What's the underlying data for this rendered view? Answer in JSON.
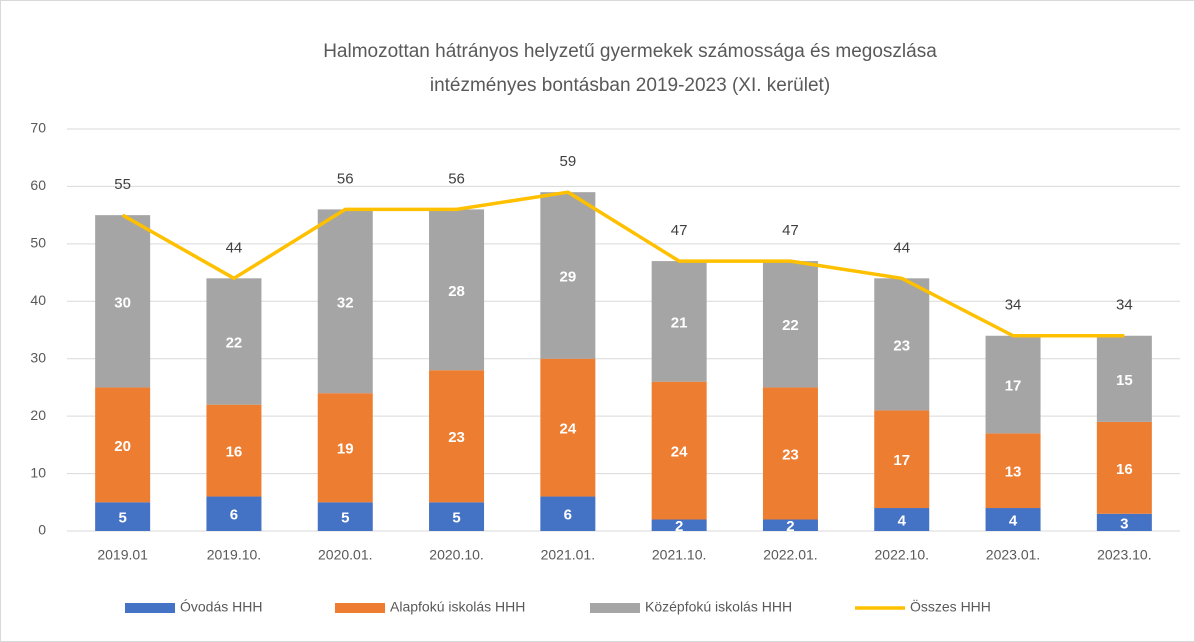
{
  "chart_data": {
    "type": "bar",
    "stacked": true,
    "title": [
      "Halmozottan hátrányos helyzetű gyermekek számossága és megoszlása",
      "intézményes bontásban 2019-2023 (XI. kerület)"
    ],
    "categories": [
      "2019.01",
      "2019.10.",
      "2020.01.",
      "2020.10.",
      "2021.01.",
      "2021.10.",
      "2022.01.",
      "2022.10.",
      "2023.01.",
      "2023.10."
    ],
    "series": [
      {
        "name": "Óvodás HHH",
        "color": "#4472c4",
        "values": [
          5,
          6,
          5,
          5,
          6,
          2,
          2,
          4,
          4,
          3
        ]
      },
      {
        "name": "Alapfokú iskolás HHH",
        "color": "#ed7d31",
        "values": [
          20,
          16,
          19,
          23,
          24,
          24,
          23,
          17,
          13,
          16
        ]
      },
      {
        "name": "Középfokú iskolás HHH",
        "color": "#a5a5a5",
        "values": [
          30,
          22,
          32,
          28,
          29,
          21,
          22,
          23,
          17,
          15
        ]
      },
      {
        "name": "Összes HHH",
        "color": "#ffc000",
        "type": "line",
        "values": [
          55,
          44,
          56,
          56,
          59,
          47,
          47,
          44,
          34,
          34
        ]
      }
    ],
    "ylim": [
      0,
      70
    ],
    "yticks": [
      0,
      10,
      20,
      30,
      40,
      50,
      60,
      70
    ],
    "grid": true,
    "legend": "bottom"
  }
}
